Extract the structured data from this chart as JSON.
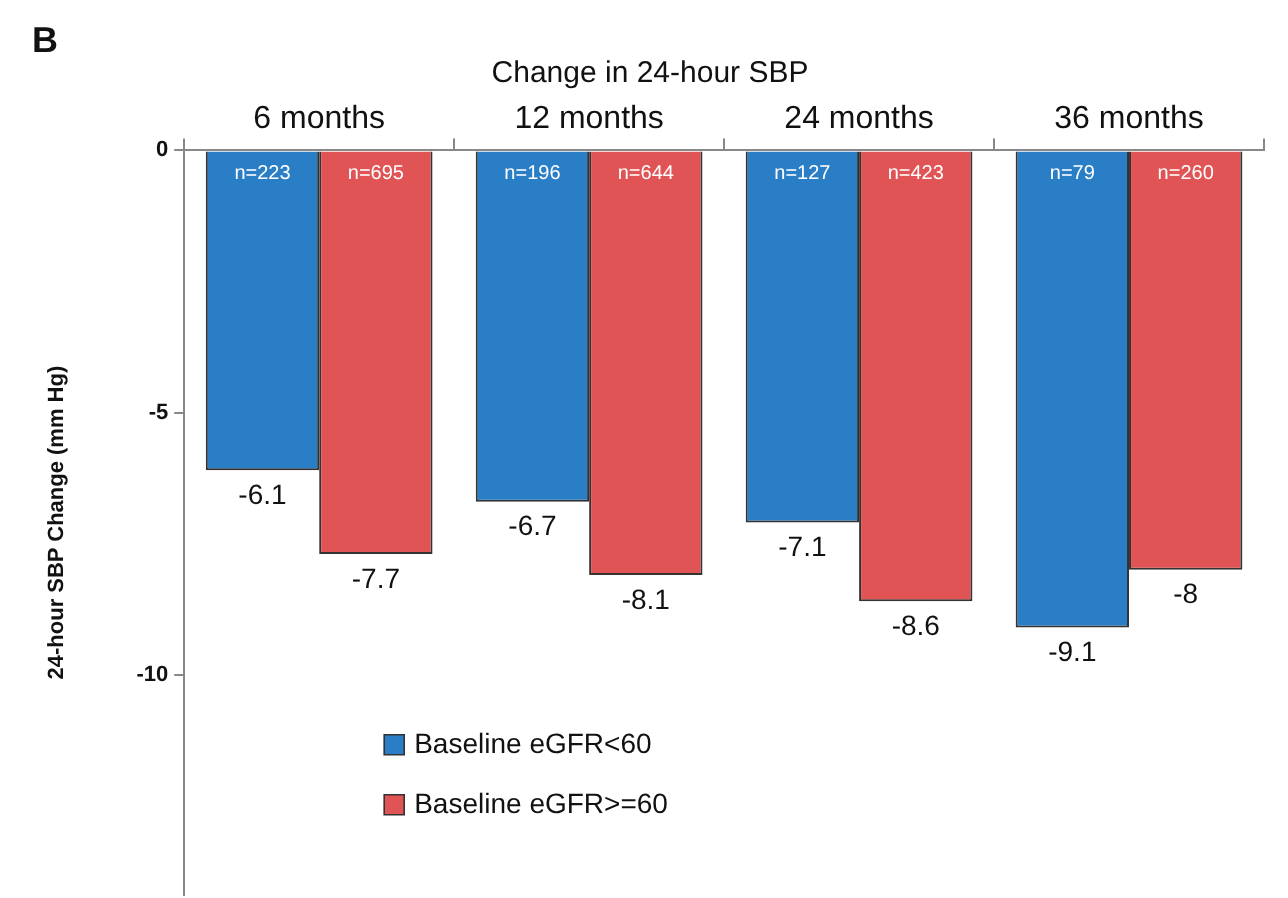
{
  "chart_data": {
    "type": "bar",
    "title": "Change in 24-hour SBP",
    "ylabel": "24-hour SBP Change (mm Hg)",
    "categories": [
      "6 months",
      "12 months",
      "24 months",
      "36 months"
    ],
    "series": [
      {
        "name": "Baseline eGFR<60",
        "color": "#2a7ec6",
        "values": [
          -6.1,
          -6.7,
          -7.1,
          -9.1
        ]
      },
      {
        "name": "Baseline eGFR>=60",
        "color": "#e05455",
        "values": [
          -7.7,
          -8.1,
          -8.6,
          -8
        ]
      }
    ],
    "ylim": [
      -14.2,
      0
    ],
    "yticks": [
      0,
      -5,
      -10
    ],
    "grid": false,
    "legend": "bottom left",
    "data_labels": true,
    "annotations": [
      "B",
      "n=223",
      "n=695",
      "n=196",
      "n=644",
      "n=127",
      "n=423",
      "n=79",
      "n=260"
    ]
  }
}
